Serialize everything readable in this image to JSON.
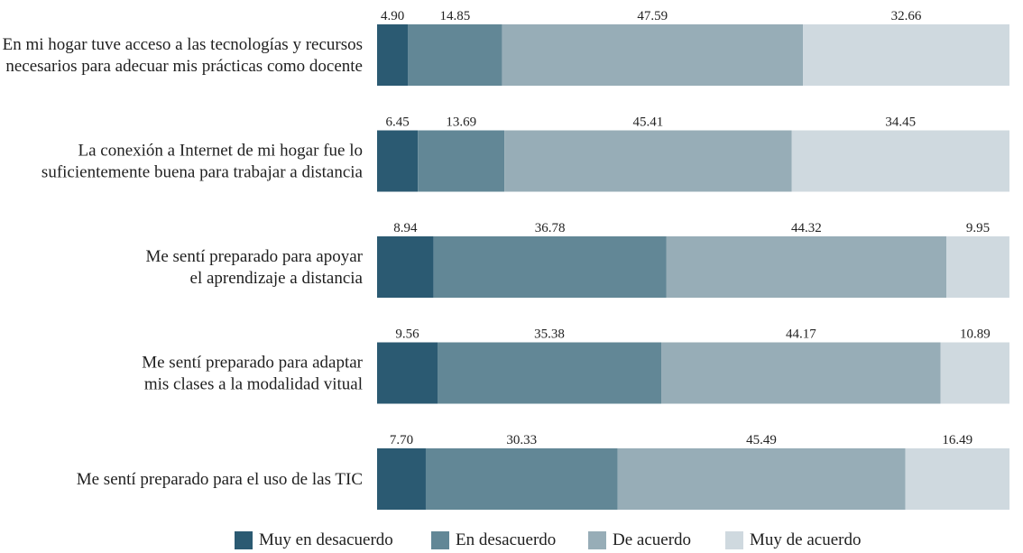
{
  "chart_data": {
    "type": "bar",
    "orientation": "horizontal",
    "stacked": true,
    "title": "",
    "xlabel": "",
    "ylabel": "",
    "xlim": [
      0,
      100
    ],
    "categories": [
      [
        "En mi hogar tuve acceso a las tecnologías y recursos",
        "necesarios para adecuar mis prácticas como docente"
      ],
      [
        "La conexión a Internet de mi hogar fue lo",
        "suficientemente buena para trabajar a distancia"
      ],
      [
        "Me sentí preparado para apoyar",
        "el aprendizaje a distancia"
      ],
      [
        "Me sentí preparado para adaptar",
        "mis clases a la modalidad vitual"
      ],
      [
        "Me sentí preparado para el uso de las TIC"
      ]
    ],
    "series": [
      {
        "name": "Muy en desacuerdo",
        "color": "#2b5a72",
        "values": [
          4.9,
          6.45,
          8.94,
          9.56,
          7.7
        ],
        "labels": [
          "4.90",
          "6.45",
          "8.94",
          "9.56",
          "7.70"
        ]
      },
      {
        "name": "En desacuerdo",
        "color": "#628796",
        "values": [
          14.85,
          13.69,
          36.78,
          35.38,
          30.33
        ],
        "labels": [
          "14.85",
          "13.69",
          "36.78",
          "35.38",
          "30.33"
        ]
      },
      {
        "name": "De acuerdo",
        "color": "#97adb7",
        "values": [
          47.59,
          45.41,
          44.32,
          44.17,
          45.49
        ],
        "labels": [
          "47.59",
          "45.41",
          "44.32",
          "44.17",
          "45.49"
        ]
      },
      {
        "name": "Muy de acuerdo",
        "color": "#cfd9df",
        "values": [
          32.66,
          34.45,
          9.95,
          10.89,
          16.49
        ],
        "labels": [
          "32.66",
          "34.45",
          "9.95",
          "10.89",
          "16.49"
        ]
      }
    ],
    "legend_position": "bottom"
  }
}
